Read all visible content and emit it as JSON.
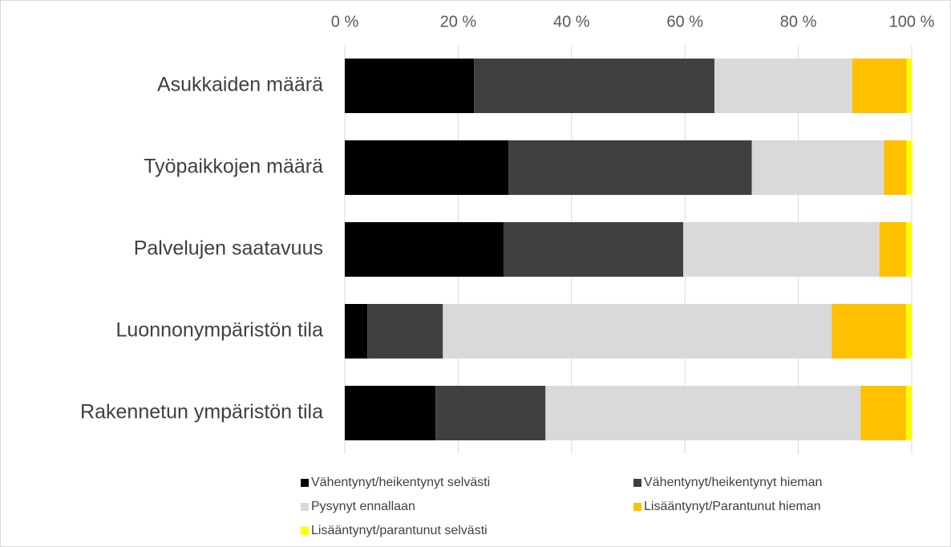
{
  "chart_data": {
    "type": "stacked_barh",
    "categories": [
      "Asukkaiden määrä",
      "Työpaikkojen määrä",
      "Palvelujen saatavuus",
      "Luonnonympäristön tila",
      "Rakennetun ympäristön tila"
    ],
    "series": [
      {
        "name": "Vähentynyt/heikentynyt selvästi",
        "color": "#000000",
        "values": [
          22.8,
          28.9,
          28.0,
          4.0,
          16.0
        ]
      },
      {
        "name": "Vähentynyt/heikentynyt hieman",
        "color": "#404040",
        "values": [
          42.4,
          42.9,
          31.7,
          13.3,
          19.4
        ]
      },
      {
        "name": "Pysynyt ennallaan",
        "color": "#d9d9d9",
        "values": [
          24.3,
          23.3,
          34.6,
          68.6,
          55.6
        ]
      },
      {
        "name": "Lisääntynyt/Parantunut hieman",
        "color": "#ffc000",
        "values": [
          9.6,
          4.0,
          4.7,
          13.1,
          8.0
        ]
      },
      {
        "name": "Lisääntynyt/parantunut selvästi",
        "color": "#ffff00",
        "values": [
          0.9,
          1.0,
          1.0,
          1.0,
          1.0
        ]
      }
    ],
    "xlim": [
      0,
      100
    ],
    "xticks": [
      {
        "value": 0,
        "label": "0 %"
      },
      {
        "value": 20,
        "label": "20 %"
      },
      {
        "value": 40,
        "label": "40 %"
      },
      {
        "value": 60,
        "label": "60 %"
      },
      {
        "value": 80,
        "label": "80 %"
      },
      {
        "value": 100,
        "label": "100 %"
      }
    ],
    "grid": true,
    "legend": "bottom"
  }
}
